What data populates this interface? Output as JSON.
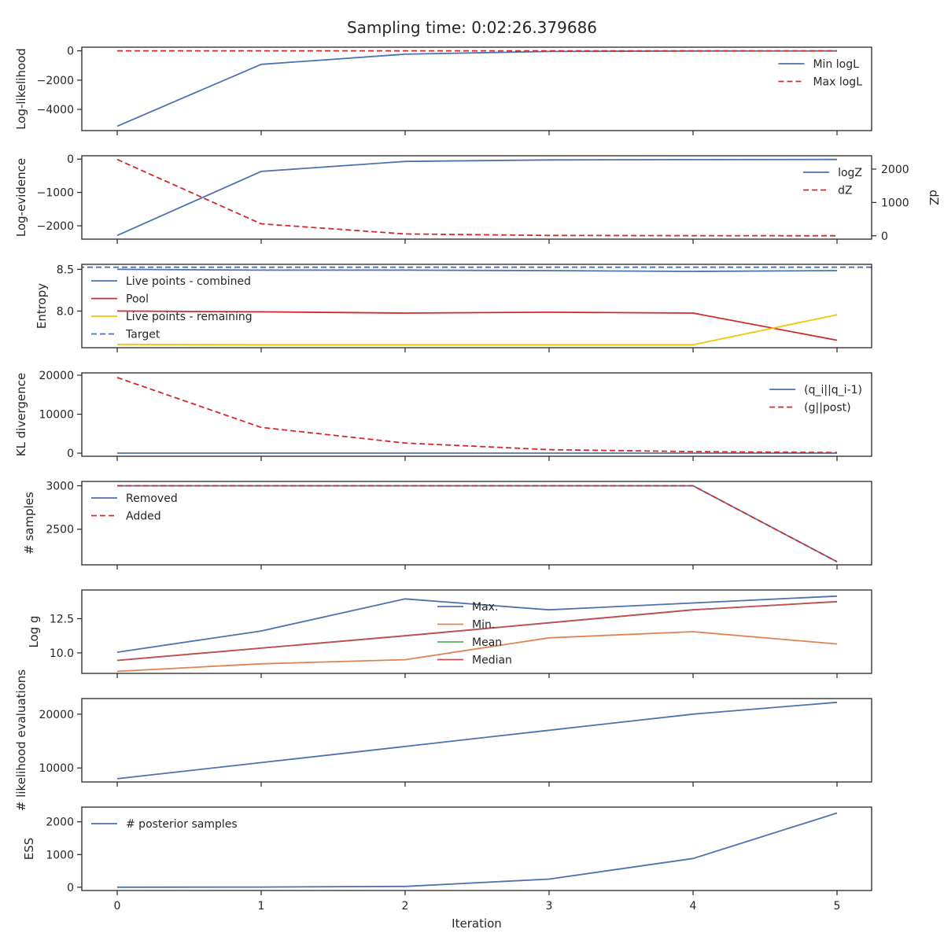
{
  "figure": {
    "title": "Sampling time: 0:02:26.379686",
    "xlabel": "Iteration",
    "x_ticks": [
      0,
      1,
      2,
      3,
      4,
      5
    ]
  },
  "chart_data": [
    {
      "id": "loglik",
      "type": "line",
      "ylabel": "Log-likelihood",
      "x": [
        0,
        1,
        2,
        3,
        4,
        5
      ],
      "ylim": [
        -5450,
        250
      ],
      "y_ticks": [
        0,
        -2000,
        -4000
      ],
      "y_tick_labels": [
        "0",
        "−2000",
        "−4000"
      ],
      "legend": {
        "loc": "upper right"
      },
      "series": [
        {
          "name": "Min logL",
          "values": [
            -5150,
            -920,
            -230,
            -40,
            -10,
            -5
          ],
          "color": "#4c72b0",
          "dash": "solid"
        },
        {
          "name": "Max logL",
          "values": [
            0,
            0,
            0,
            0,
            0,
            0
          ],
          "color": "#d62728",
          "dash": "dashed"
        }
      ]
    },
    {
      "id": "logevidence",
      "type": "line",
      "ylabel": "Log-evidence",
      "y2label": "dZ",
      "x": [
        0,
        1,
        2,
        3,
        4,
        5
      ],
      "ylim": [
        -2400,
        100
      ],
      "y_ticks": [
        0,
        -1000,
        -2000
      ],
      "y_tick_labels": [
        "0",
        "−1000",
        "−2000"
      ],
      "y2lim": [
        -100,
        2400
      ],
      "y2_ticks": [
        0,
        1000,
        2000
      ],
      "y2_tick_labels": [
        "0",
        "1000",
        "2000"
      ],
      "legend": {
        "loc": "upper right"
      },
      "series": [
        {
          "name": "logZ",
          "axis": "left",
          "values": [
            -2290,
            -370,
            -70,
            -25,
            -15,
            -12
          ],
          "color": "#4c72b0",
          "dash": "solid"
        },
        {
          "name": "dZ",
          "axis": "right",
          "values": [
            2290,
            360,
            55,
            12,
            3,
            1
          ],
          "color": "#d62728",
          "dash": "dashed"
        }
      ]
    },
    {
      "id": "entropy",
      "type": "line",
      "ylabel": "Entropy",
      "x": [
        0,
        1,
        2,
        3,
        4,
        5
      ],
      "ylim": [
        7.56,
        8.56
      ],
      "y_ticks": [
        8.5,
        8.0
      ],
      "y_tick_labels": [
        "8.5",
        "8.0"
      ],
      "legend": {
        "loc": "upper left"
      },
      "series": [
        {
          "name": "Live points - combined",
          "values": [
            8.5,
            8.49,
            8.49,
            8.485,
            8.475,
            8.485
          ],
          "color": "#4c72b0",
          "dash": "solid"
        },
        {
          "name": "Pool",
          "values": [
            8.0,
            7.99,
            7.975,
            7.985,
            7.975,
            7.65
          ],
          "color": "#d62728",
          "dash": "solid"
        },
        {
          "name": "Live points - remaining",
          "values": [
            7.6,
            7.595,
            7.595,
            7.595,
            7.595,
            7.955
          ],
          "color": "#f2c500",
          "dash": "solid"
        },
        {
          "name": "Target",
          "values": [
            8.525,
            8.525,
            8.525,
            8.525,
            8.525,
            8.525
          ],
          "color": "#4c72b0",
          "dash": "dashed",
          "span": "full"
        }
      ]
    },
    {
      "id": "kl",
      "type": "line",
      "ylabel": "KL divergence",
      "x": [
        0,
        1,
        2,
        3,
        4,
        5
      ],
      "ylim": [
        -800,
        20600
      ],
      "y_ticks": [
        0,
        10000,
        20000
      ],
      "y_tick_labels": [
        "0",
        "10000",
        "20000"
      ],
      "legend": {
        "loc": "upper right"
      },
      "series": [
        {
          "name": "(q_i||q_i-1)",
          "values": [
            0,
            0,
            0,
            0,
            0,
            0
          ],
          "color": "#4c72b0",
          "dash": "solid"
        },
        {
          "name": "(g||post)",
          "values": [
            19400,
            6600,
            2600,
            900,
            400,
            150
          ],
          "color": "#d62728",
          "dash": "dashed"
        }
      ]
    },
    {
      "id": "samples",
      "type": "line",
      "ylabel": "# samples",
      "x": [
        0,
        1,
        2,
        3,
        4,
        5
      ],
      "ylim": [
        2090,
        3050
      ],
      "y_ticks": [
        3000,
        2500
      ],
      "y_tick_labels": [
        "3000",
        "2500"
      ],
      "legend": {
        "loc": "upper left"
      },
      "series": [
        {
          "name": "Removed",
          "values": [
            3000,
            3000,
            3000,
            3000,
            3000,
            2125
          ],
          "color": "#4c72b0",
          "dash": "solid"
        },
        {
          "name": "Added",
          "values": [
            3000,
            3000,
            3000,
            3000,
            3000,
            2125
          ],
          "color": "#d62728",
          "dash": "dashed"
        }
      ]
    },
    {
      "id": "logg",
      "type": "line",
      "ylabel": "Log g",
      "x": [
        0,
        1,
        2,
        3,
        4,
        5
      ],
      "ylim": [
        8.5,
        14.6
      ],
      "y_ticks": [
        12.5,
        10.0
      ],
      "y_tick_labels": [
        "12.5",
        "10.0"
      ],
      "legend": {
        "loc": "upper center"
      },
      "series": [
        {
          "name": "Max.",
          "values": [
            10.05,
            11.6,
            13.95,
            13.15,
            13.65,
            14.15
          ],
          "color": "#4c72b0",
          "dash": "solid"
        },
        {
          "name": "Min.",
          "values": [
            8.65,
            9.2,
            9.5,
            11.1,
            11.55,
            10.65
          ],
          "color": "#dd8452",
          "dash": "solid"
        },
        {
          "name": "Mean",
          "values": [
            9.45,
            10.35,
            11.25,
            12.2,
            13.15,
            13.75
          ],
          "color": "#55a868",
          "dash": "solid"
        },
        {
          "name": "Median",
          "values": [
            9.45,
            10.35,
            11.25,
            12.2,
            13.15,
            13.75
          ],
          "color": "#c44e52",
          "dash": "solid"
        }
      ]
    },
    {
      "id": "likeval",
      "type": "line",
      "ylabel": "# likelihood evaluations",
      "x": [
        0,
        1,
        2,
        3,
        4,
        5
      ],
      "ylim": [
        7400,
        22900
      ],
      "y_ticks": [
        10000,
        20000
      ],
      "y_tick_labels": [
        "10000",
        "20000"
      ],
      "series": [
        {
          "values": [
            8000,
            11000,
            14000,
            17000,
            20000,
            22200
          ],
          "color": "#4c72b0",
          "dash": "solid"
        }
      ]
    },
    {
      "id": "ess",
      "type": "line",
      "ylabel": "ESS",
      "x": [
        0,
        1,
        2,
        3,
        4,
        5
      ],
      "ylim": [
        -100,
        2450
      ],
      "y_ticks": [
        0,
        1000,
        2000
      ],
      "y_tick_labels": [
        "0",
        "1000",
        "2000"
      ],
      "legend": {
        "loc": "upper left"
      },
      "series": [
        {
          "name": "# posterior samples",
          "values": [
            0,
            5,
            25,
            250,
            880,
            2270
          ],
          "color": "#4c72b0",
          "dash": "solid"
        }
      ]
    }
  ]
}
